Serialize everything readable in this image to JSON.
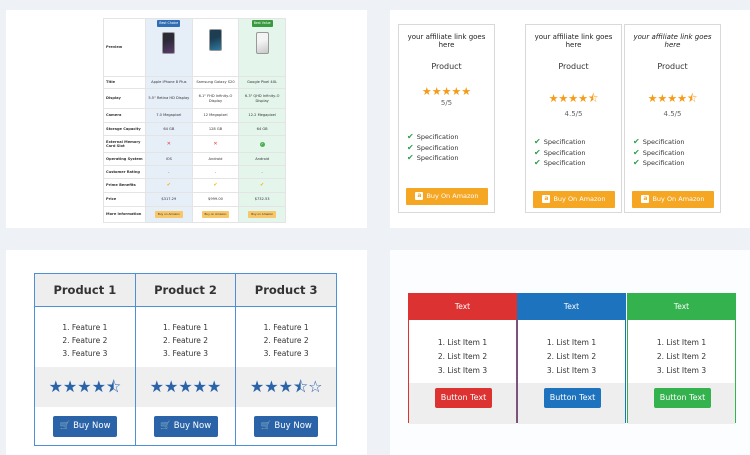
{
  "comparison_table": {
    "rows": [
      {
        "label": "Preview",
        "cells": [
          "",
          "",
          ""
        ]
      },
      {
        "label": "Title",
        "cells": [
          "Apple iPhone 8 Plus",
          "Samsung Galaxy S20",
          "Google Pixel 4XL"
        ]
      },
      {
        "label": "Display",
        "cells": [
          "5.5\" Retina HD Display",
          "6.1\" FHD Infinity-O Display",
          "6.3\" QHD Infinity-O Display"
        ]
      },
      {
        "label": "Camera",
        "cells": [
          "7.0 Megapixel",
          "12 Megapixel",
          "12.2 Megapixel"
        ]
      },
      {
        "label": "Storage Capacity",
        "cells": [
          "64 GB",
          "128 GB",
          "64 GB"
        ]
      },
      {
        "label": "External Memory Card Slot",
        "cells": [
          "",
          "",
          ""
        ]
      },
      {
        "label": "Operating System",
        "cells": [
          "iOS",
          "Android",
          "Android"
        ]
      },
      {
        "label": "Customer Rating",
        "cells": [
          "-",
          "-",
          "-"
        ]
      },
      {
        "label": "Prime Benefits",
        "cells": [
          "",
          "",
          ""
        ]
      },
      {
        "label": "Price",
        "cells": [
          "$317.29",
          "$999.00",
          "$732.53"
        ]
      },
      {
        "label": "More Information",
        "cells": [
          "",
          "",
          ""
        ]
      }
    ],
    "badges": [
      "Best Choice",
      "",
      "Best Value"
    ],
    "buy_label": "Buy on Amazon",
    "colors": {
      "blue_badge": "#2f6db5",
      "green_badge": "#3a9a3e"
    }
  },
  "affiliate_cards": [
    {
      "link": "your affiliate link goes here",
      "product": "Product",
      "stars": "★★★★★",
      "score": "5/5",
      "specs": [
        "Specification",
        "Specification",
        "Specification"
      ],
      "button": "Buy On Amazon"
    },
    {
      "link": "your affiliate link goes here",
      "product": "Product",
      "stars": "★★★★⯪",
      "score": "4.5/5",
      "specs": [
        "Specification",
        "Specification",
        "Specification"
      ],
      "button": "Buy On Amazon"
    },
    {
      "link": "your affiliate link goes here",
      "product": "Product",
      "stars": "★★★★⯪",
      "score": "4.5/5",
      "specs": [
        "Specification",
        "Specification",
        "Specification"
      ],
      "button": "Buy On Amazon"
    }
  ],
  "product_table": {
    "columns": [
      {
        "title": "Product 1",
        "features": [
          "1. Feature 1",
          "2. Feature 2",
          "3. Feature 3"
        ],
        "stars": "★★★★⯪",
        "button": "Buy Now"
      },
      {
        "title": "Product 2",
        "features": [
          "1. Feature 1",
          "2. Feature 2",
          "3. Feature 3"
        ],
        "stars": "★★★★★",
        "button": "Buy Now"
      },
      {
        "title": "Product 3",
        "features": [
          "1. Feature 1",
          "2. Feature 2",
          "3. Feature 3"
        ],
        "stars": "★★★⯪☆",
        "button": "Buy Now"
      }
    ],
    "accent": "#2b63a9"
  },
  "list_table": {
    "columns": [
      {
        "header": "Text",
        "items": [
          "1. List Item 1",
          "2. List Item 2",
          "3. List Item 3"
        ],
        "button": "Button Text",
        "color": "#dc3232"
      },
      {
        "header": "Text",
        "items": [
          "1. List Item 1",
          "2. List Item 2",
          "3. List Item 3"
        ],
        "button": "Button Text",
        "color": "#1e73be"
      },
      {
        "header": "Text",
        "items": [
          "1. List Item 1",
          "2. List Item 2",
          "3. List Item 3"
        ],
        "button": "Button Text",
        "color": "#33b24e"
      }
    ]
  }
}
